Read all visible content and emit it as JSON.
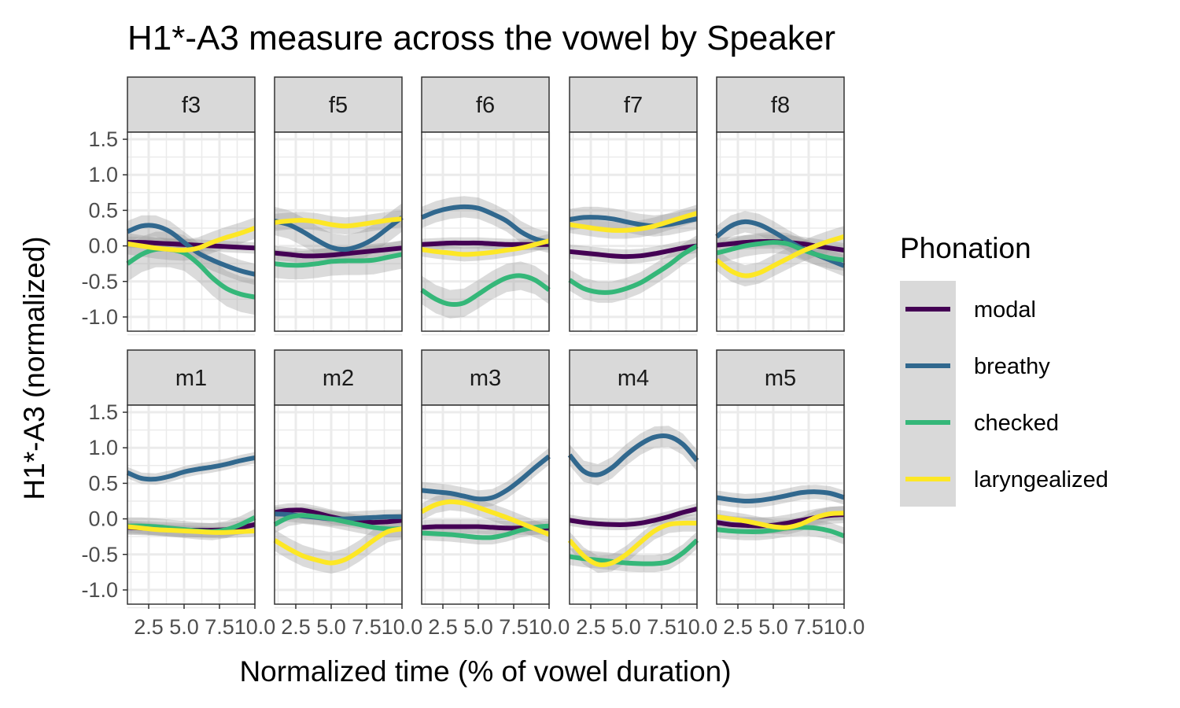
{
  "chart_data": {
    "type": "line",
    "title": "H1*-A3 measure across the vowel by Speaker",
    "xlabel": "Normalized time (% of vowel duration)",
    "ylabel": "H1*-A3 (normalized)",
    "xlim": [
      1,
      10
    ],
    "ylim": [
      -1.2,
      1.6
    ],
    "x_ticks": [
      2.5,
      5.0,
      7.5,
      10.0
    ],
    "x_tick_labels": [
      "2.5",
      "5.0",
      "7.5",
      "10.0"
    ],
    "y_ticks": [
      -1.0,
      -0.5,
      0.0,
      0.5,
      1.0,
      1.5
    ],
    "y_tick_labels": [
      "-1.0",
      "-0.5",
      "0.0",
      "0.5",
      "1.0",
      "1.5"
    ],
    "grid": true,
    "facet_columns": 5,
    "legend": {
      "title": "Phonation",
      "position": "right",
      "entries": [
        {
          "name": "modal",
          "color": "#440154"
        },
        {
          "name": "breathy",
          "color": "#31688E"
        },
        {
          "name": "checked",
          "color": "#35B779"
        },
        {
          "name": "laryngealized",
          "color": "#FDE725"
        }
      ]
    },
    "x": [
      1,
      2,
      3,
      4,
      5,
      6,
      7,
      8,
      9,
      10
    ],
    "panels": [
      {
        "speaker": "f3",
        "series": [
          {
            "name": "modal",
            "values": [
              0.05,
              0.05,
              0.04,
              0.03,
              0.02,
              0.01,
              0.0,
              -0.01,
              -0.02,
              -0.03
            ],
            "se": 0.08
          },
          {
            "name": "breathy",
            "values": [
              0.2,
              0.28,
              0.28,
              0.2,
              0.05,
              -0.1,
              -0.2,
              -0.28,
              -0.35,
              -0.4
            ],
            "se": 0.15
          },
          {
            "name": "checked",
            "values": [
              -0.25,
              -0.12,
              -0.05,
              -0.05,
              -0.1,
              -0.25,
              -0.45,
              -0.6,
              -0.68,
              -0.72
            ],
            "se": 0.25
          },
          {
            "name": "laryngealized",
            "values": [
              0.03,
              0.0,
              -0.03,
              -0.05,
              -0.06,
              -0.03,
              0.05,
              0.12,
              0.18,
              0.25
            ],
            "se": 0.15
          }
        ]
      },
      {
        "speaker": "f5",
        "series": [
          {
            "name": "modal",
            "values": [
              -0.1,
              -0.12,
              -0.14,
              -0.14,
              -0.13,
              -0.11,
              -0.09,
              -0.07,
              -0.05,
              -0.03
            ],
            "se": 0.1
          },
          {
            "name": "breathy",
            "values": [
              0.35,
              0.3,
              0.2,
              0.08,
              -0.02,
              -0.05,
              0.0,
              0.1,
              0.25,
              0.4
            ],
            "se": 0.2
          },
          {
            "name": "checked",
            "values": [
              -0.25,
              -0.27,
              -0.27,
              -0.25,
              -0.22,
              -0.21,
              -0.21,
              -0.2,
              -0.16,
              -0.12
            ],
            "se": 0.2
          },
          {
            "name": "laryngealized",
            "values": [
              0.33,
              0.35,
              0.36,
              0.34,
              0.3,
              0.28,
              0.3,
              0.33,
              0.36,
              0.38
            ],
            "se": 0.12
          }
        ]
      },
      {
        "speaker": "f6",
        "series": [
          {
            "name": "modal",
            "values": [
              0.02,
              0.03,
              0.04,
              0.04,
              0.04,
              0.03,
              0.02,
              0.02,
              0.02,
              0.02
            ],
            "se": 0.08
          },
          {
            "name": "breathy",
            "values": [
              0.4,
              0.48,
              0.53,
              0.55,
              0.53,
              0.45,
              0.35,
              0.2,
              0.1,
              0.05
            ],
            "se": 0.15
          },
          {
            "name": "checked",
            "values": [
              -0.62,
              -0.75,
              -0.82,
              -0.8,
              -0.68,
              -0.55,
              -0.45,
              -0.42,
              -0.48,
              -0.62
            ],
            "se": 0.2
          },
          {
            "name": "laryngealized",
            "values": [
              -0.05,
              -0.08,
              -0.1,
              -0.12,
              -0.11,
              -0.09,
              -0.06,
              -0.03,
              0.02,
              0.07
            ],
            "se": 0.1
          }
        ]
      },
      {
        "speaker": "f7",
        "series": [
          {
            "name": "modal",
            "values": [
              -0.08,
              -0.1,
              -0.12,
              -0.14,
              -0.15,
              -0.14,
              -0.11,
              -0.07,
              -0.03,
              0.0
            ],
            "se": 0.1
          },
          {
            "name": "breathy",
            "values": [
              0.37,
              0.4,
              0.4,
              0.38,
              0.34,
              0.3,
              0.28,
              0.3,
              0.34,
              0.38
            ],
            "se": 0.15
          },
          {
            "name": "checked",
            "values": [
              -0.48,
              -0.6,
              -0.65,
              -0.65,
              -0.6,
              -0.52,
              -0.4,
              -0.27,
              -0.12,
              0.0
            ],
            "se": 0.15
          },
          {
            "name": "laryngealized",
            "values": [
              0.3,
              0.27,
              0.24,
              0.22,
              0.22,
              0.24,
              0.28,
              0.34,
              0.4,
              0.46
            ],
            "se": 0.12
          }
        ]
      },
      {
        "speaker": "f8",
        "series": [
          {
            "name": "modal",
            "values": [
              0.01,
              0.03,
              0.05,
              0.06,
              0.06,
              0.05,
              0.03,
              0.0,
              -0.03,
              -0.06
            ],
            "se": 0.1
          },
          {
            "name": "breathy",
            "values": [
              0.13,
              0.28,
              0.34,
              0.3,
              0.2,
              0.08,
              -0.03,
              -0.12,
              -0.2,
              -0.28
            ],
            "se": 0.15
          },
          {
            "name": "checked",
            "values": [
              -0.1,
              -0.05,
              0.0,
              0.03,
              0.05,
              0.03,
              -0.05,
              -0.12,
              -0.17,
              -0.2
            ],
            "se": 0.15
          },
          {
            "name": "laryngealized",
            "values": [
              -0.2,
              -0.35,
              -0.42,
              -0.38,
              -0.28,
              -0.18,
              -0.08,
              0.0,
              0.07,
              0.13
            ],
            "se": 0.15
          }
        ]
      },
      {
        "speaker": "m1",
        "series": [
          {
            "name": "modal",
            "values": [
              -0.12,
              -0.13,
              -0.14,
              -0.15,
              -0.16,
              -0.16,
              -0.16,
              -0.15,
              -0.12,
              -0.08
            ],
            "se": 0.1
          },
          {
            "name": "breathy",
            "values": [
              0.65,
              0.57,
              0.56,
              0.6,
              0.66,
              0.7,
              0.73,
              0.77,
              0.82,
              0.86
            ],
            "se": 0.08
          },
          {
            "name": "checked",
            "values": [
              -0.1,
              -0.1,
              -0.11,
              -0.13,
              -0.15,
              -0.17,
              -0.18,
              -0.15,
              -0.08,
              0.02
            ],
            "se": 0.12
          },
          {
            "name": "laryngealized",
            "values": [
              -0.11,
              -0.13,
              -0.15,
              -0.16,
              -0.17,
              -0.18,
              -0.19,
              -0.19,
              -0.18,
              -0.17
            ],
            "se": 0.08
          }
        ]
      },
      {
        "speaker": "m2",
        "series": [
          {
            "name": "modal",
            "values": [
              0.09,
              0.12,
              0.12,
              0.08,
              0.03,
              -0.01,
              -0.04,
              -0.05,
              -0.04,
              -0.02
            ],
            "se": 0.1
          },
          {
            "name": "breathy",
            "values": [
              0.07,
              0.06,
              0.04,
              0.02,
              0.0,
              0.0,
              0.01,
              0.02,
              0.03,
              0.03
            ],
            "se": 0.1
          },
          {
            "name": "checked",
            "values": [
              -0.08,
              0.02,
              0.05,
              0.03,
              0.0,
              -0.04,
              -0.08,
              -0.12,
              -0.14,
              -0.14
            ],
            "se": 0.12
          },
          {
            "name": "laryngealized",
            "values": [
              -0.3,
              -0.42,
              -0.52,
              -0.58,
              -0.62,
              -0.57,
              -0.45,
              -0.3,
              -0.18,
              -0.14
            ],
            "se": 0.15
          }
        ]
      },
      {
        "speaker": "m3",
        "series": [
          {
            "name": "modal",
            "values": [
              -0.12,
              -0.11,
              -0.11,
              -0.11,
              -0.11,
              -0.12,
              -0.13,
              -0.13,
              -0.13,
              -0.13
            ],
            "se": 0.1
          },
          {
            "name": "breathy",
            "values": [
              0.4,
              0.38,
              0.36,
              0.32,
              0.28,
              0.3,
              0.4,
              0.55,
              0.72,
              0.88
            ],
            "se": 0.12
          },
          {
            "name": "checked",
            "values": [
              -0.2,
              -0.21,
              -0.22,
              -0.24,
              -0.26,
              -0.26,
              -0.22,
              -0.16,
              -0.12,
              -0.1
            ],
            "se": 0.1
          },
          {
            "name": "laryngealized",
            "values": [
              0.1,
              0.2,
              0.24,
              0.22,
              0.16,
              0.09,
              0.02,
              -0.06,
              -0.14,
              -0.22
            ],
            "se": 0.12
          }
        ]
      },
      {
        "speaker": "m4",
        "series": [
          {
            "name": "modal",
            "values": [
              -0.02,
              -0.05,
              -0.07,
              -0.08,
              -0.08,
              -0.06,
              -0.02,
              0.03,
              0.09,
              0.14
            ],
            "se": 0.08
          },
          {
            "name": "breathy",
            "values": [
              0.9,
              0.67,
              0.62,
              0.72,
              0.9,
              1.05,
              1.15,
              1.16,
              1.05,
              0.82
            ],
            "se": 0.15
          },
          {
            "name": "checked",
            "values": [
              -0.53,
              -0.56,
              -0.58,
              -0.6,
              -0.62,
              -0.63,
              -0.63,
              -0.6,
              -0.48,
              -0.3
            ],
            "se": 0.12
          },
          {
            "name": "laryngealized",
            "values": [
              -0.3,
              -0.52,
              -0.64,
              -0.62,
              -0.5,
              -0.33,
              -0.17,
              -0.08,
              -0.06,
              -0.06
            ],
            "se": 0.12
          }
        ]
      },
      {
        "speaker": "m5",
        "series": [
          {
            "name": "modal",
            "values": [
              -0.05,
              -0.08,
              -0.09,
              -0.1,
              -0.09,
              -0.06,
              -0.02,
              0.02,
              0.05,
              0.06
            ],
            "se": 0.12
          },
          {
            "name": "breathy",
            "values": [
              0.3,
              0.27,
              0.25,
              0.26,
              0.29,
              0.33,
              0.37,
              0.38,
              0.36,
              0.3
            ],
            "se": 0.1
          },
          {
            "name": "checked",
            "values": [
              -0.15,
              -0.17,
              -0.18,
              -0.18,
              -0.16,
              -0.13,
              -0.12,
              -0.13,
              -0.17,
              -0.24
            ],
            "se": 0.12
          },
          {
            "name": "laryngealized",
            "values": [
              0.03,
              0.0,
              -0.03,
              -0.07,
              -0.11,
              -0.12,
              -0.07,
              0.02,
              0.07,
              0.08
            ],
            "se": 0.1
          }
        ]
      }
    ]
  }
}
